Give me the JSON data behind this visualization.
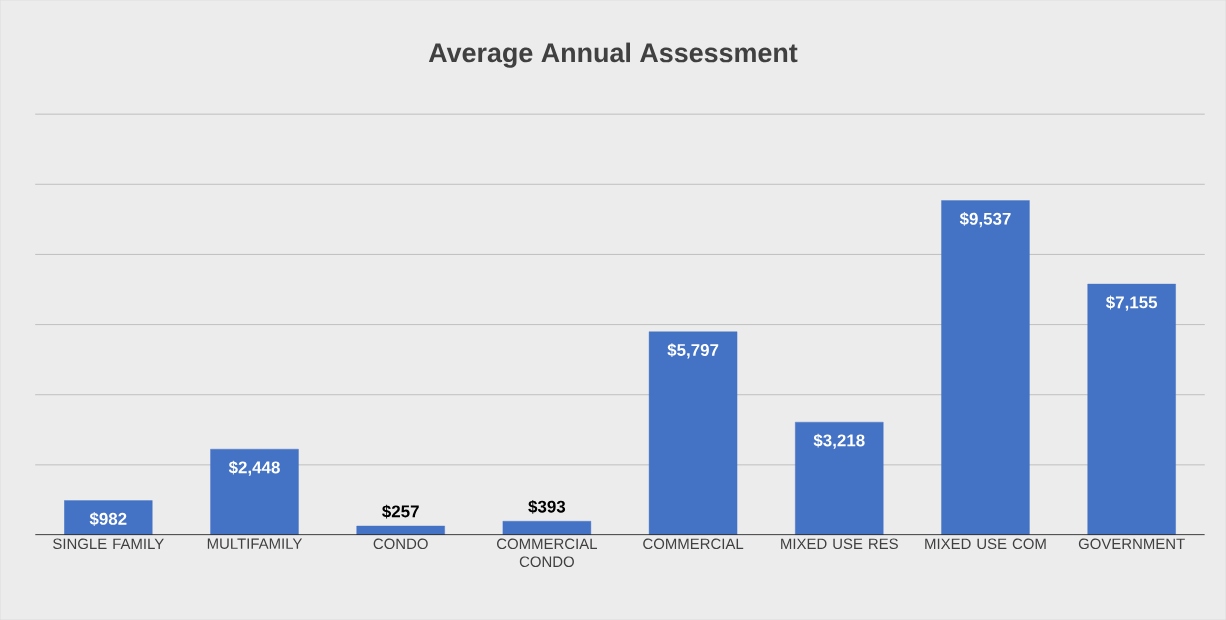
{
  "chart_data": {
    "type": "bar",
    "title": "Average Annual Assessment",
    "categories": [
      "SINGLE FAMILY",
      "MULTIFAMILY",
      "CONDO",
      "COMMERCIAL CONDO",
      "COMMERCIAL",
      "MIXED USE RES",
      "MIXED USE COM",
      "GOVERNMENT"
    ],
    "values": [
      982,
      2448,
      257,
      393,
      5797,
      3218,
      9537,
      7155
    ],
    "value_labels": [
      "$982",
      "$2,448",
      "$257",
      "$393",
      "$5,797",
      "$3,218",
      "$9,537",
      "$7,155"
    ],
    "color": "#4472c4",
    "ylim": [
      0,
      12000
    ],
    "yticks": [
      {
        "value": 0,
        "label": null
      },
      {
        "value": 2000,
        "label": null
      },
      {
        "value": 4000,
        "label": null
      },
      {
        "value": 6000,
        "label": null
      },
      {
        "value": 8000,
        "label": null
      },
      {
        "value": 10000,
        "label": null
      },
      {
        "value": 12000,
        "label": null
      }
    ],
    "tick_labels": "x",
    "grid": "y"
  }
}
